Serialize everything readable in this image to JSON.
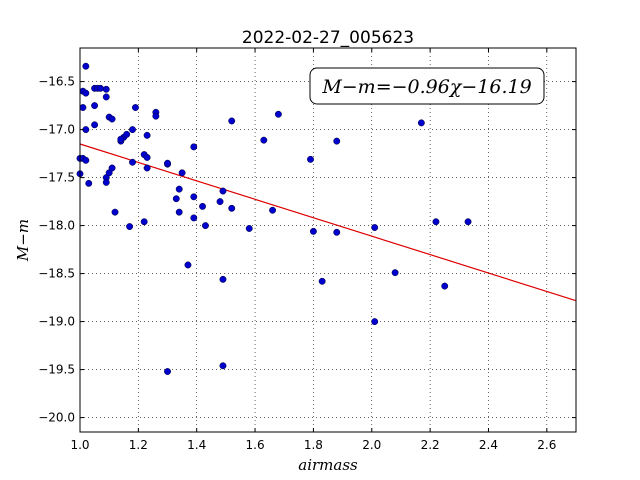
{
  "chart_data": {
    "type": "scatter",
    "title": "2022-02-27_005623",
    "xlabel": "airmass",
    "ylabel": "M−m",
    "xlim": [
      1.0,
      2.7
    ],
    "ylim": [
      -20.15,
      -16.15
    ],
    "y_inverted": true,
    "grid": true,
    "xticks": [
      1.0,
      1.2,
      1.4,
      1.6,
      1.8,
      2.0,
      2.2,
      2.4,
      2.6
    ],
    "xtick_labels": [
      "1.0",
      "1.2",
      "1.4",
      "1.6",
      "1.8",
      "2.0",
      "2.2",
      "2.4",
      "2.6"
    ],
    "yticks": [
      -16.5,
      -17.0,
      -17.5,
      -18.0,
      -18.5,
      -19.0,
      -19.5,
      -20.0
    ],
    "ytick_labels": [
      "−16.5",
      "−17.0",
      "−17.5",
      "−18.0",
      "−18.5",
      "−19.0",
      "−19.5",
      "−20.0"
    ],
    "point_color": "#0000cc",
    "fit_color": "#dd0000",
    "annotation": "M−m=−0.96χ−16.19",
    "fit": {
      "slope": -0.96,
      "intercept": -16.19
    },
    "points": [
      {
        "x": 1.0,
        "y": -17.3
      },
      {
        "x": 1.0,
        "y": -17.46
      },
      {
        "x": 1.02,
        "y": -16.34
      },
      {
        "x": 1.01,
        "y": -16.6
      },
      {
        "x": 1.02,
        "y": -16.62
      },
      {
        "x": 1.01,
        "y": -16.77
      },
      {
        "x": 1.02,
        "y": -17.0
      },
      {
        "x": 1.01,
        "y": -17.3
      },
      {
        "x": 1.02,
        "y": -17.32
      },
      {
        "x": 1.03,
        "y": -17.56
      },
      {
        "x": 1.05,
        "y": -16.57
      },
      {
        "x": 1.05,
        "y": -16.75
      },
      {
        "x": 1.05,
        "y": -16.95
      },
      {
        "x": 1.06,
        "y": -16.57
      },
      {
        "x": 1.07,
        "y": -16.57
      },
      {
        "x": 1.09,
        "y": -16.58
      },
      {
        "x": 1.09,
        "y": -16.66
      },
      {
        "x": 1.1,
        "y": -16.87
      },
      {
        "x": 1.11,
        "y": -16.89
      },
      {
        "x": 1.09,
        "y": -17.5
      },
      {
        "x": 1.09,
        "y": -17.55
      },
      {
        "x": 1.1,
        "y": -17.45
      },
      {
        "x": 1.11,
        "y": -17.4
      },
      {
        "x": 1.12,
        "y": -17.86
      },
      {
        "x": 1.14,
        "y": -17.12
      },
      {
        "x": 1.15,
        "y": -17.08
      },
      {
        "x": 1.14,
        "y": -17.1
      },
      {
        "x": 1.16,
        "y": -17.05
      },
      {
        "x": 1.18,
        "y": -17.0
      },
      {
        "x": 1.19,
        "y": -16.77
      },
      {
        "x": 1.18,
        "y": -17.34
      },
      {
        "x": 1.17,
        "y": -18.01
      },
      {
        "x": 1.23,
        "y": -17.06
      },
      {
        "x": 1.22,
        "y": -17.26
      },
      {
        "x": 1.23,
        "y": -17.29
      },
      {
        "x": 1.23,
        "y": -17.4
      },
      {
        "x": 1.22,
        "y": -17.96
      },
      {
        "x": 1.26,
        "y": -16.82
      },
      {
        "x": 1.26,
        "y": -16.86
      },
      {
        "x": 1.3,
        "y": -17.36
      },
      {
        "x": 1.3,
        "y": -17.35
      },
      {
        "x": 1.3,
        "y": -19.52
      },
      {
        "x": 1.33,
        "y": -17.72
      },
      {
        "x": 1.34,
        "y": -17.62
      },
      {
        "x": 1.34,
        "y": -17.86
      },
      {
        "x": 1.35,
        "y": -17.45
      },
      {
        "x": 1.37,
        "y": -18.41
      },
      {
        "x": 1.39,
        "y": -17.18
      },
      {
        "x": 1.39,
        "y": -17.7
      },
      {
        "x": 1.39,
        "y": -17.92
      },
      {
        "x": 1.42,
        "y": -17.8
      },
      {
        "x": 1.43,
        "y": -18.0
      },
      {
        "x": 1.48,
        "y": -17.75
      },
      {
        "x": 1.49,
        "y": -17.64
      },
      {
        "x": 1.49,
        "y": -18.56
      },
      {
        "x": 1.49,
        "y": -19.46
      },
      {
        "x": 1.52,
        "y": -16.91
      },
      {
        "x": 1.52,
        "y": -17.82
      },
      {
        "x": 1.58,
        "y": -18.03
      },
      {
        "x": 1.63,
        "y": -17.11
      },
      {
        "x": 1.66,
        "y": -17.84
      },
      {
        "x": 1.68,
        "y": -16.84
      },
      {
        "x": 1.79,
        "y": -17.31
      },
      {
        "x": 1.8,
        "y": -18.06
      },
      {
        "x": 1.83,
        "y": -18.58
      },
      {
        "x": 1.88,
        "y": -17.12
      },
      {
        "x": 1.88,
        "y": -18.07
      },
      {
        "x": 2.01,
        "y": -18.02
      },
      {
        "x": 2.01,
        "y": -19.0
      },
      {
        "x": 2.08,
        "y": -18.49
      },
      {
        "x": 2.17,
        "y": -16.93
      },
      {
        "x": 2.22,
        "y": -17.96
      },
      {
        "x": 2.25,
        "y": -18.63
      },
      {
        "x": 2.33,
        "y": -17.96
      }
    ]
  }
}
